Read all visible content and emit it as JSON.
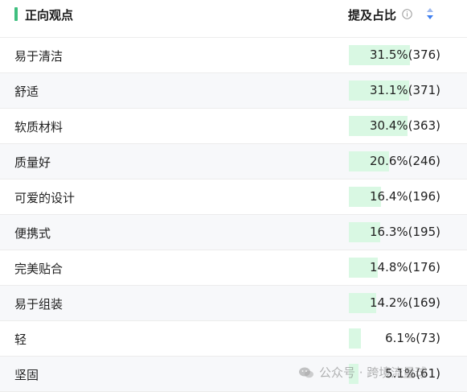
{
  "header": {
    "title": "正向观点",
    "column_title": "提及占比",
    "accent_color": "#3fbf7f",
    "info_icon": "info-icon",
    "sort_icon": "sort-icon"
  },
  "rows": [
    {
      "label": "易于清洁",
      "value": "31.5%(376)",
      "share": 31.5
    },
    {
      "label": "舒适",
      "value": "31.1%(371)",
      "share": 31.1
    },
    {
      "label": "软质材料",
      "value": "30.4%(363)",
      "share": 30.4
    },
    {
      "label": "质量好",
      "value": "20.6%(246)",
      "share": 20.6
    },
    {
      "label": "可爱的设计",
      "value": "16.4%(196)",
      "share": 16.4
    },
    {
      "label": "便携式",
      "value": "16.3%(195)",
      "share": 16.3
    },
    {
      "label": "完美贴合",
      "value": "14.8%(176)",
      "share": 14.8
    },
    {
      "label": "易于组装",
      "value": "14.2%(169)",
      "share": 14.2
    },
    {
      "label": "轻",
      "value": "6.1%(73)",
      "share": 6.1
    },
    {
      "label": "坚固",
      "value": "5.1%(61)",
      "share": 5.1
    }
  ],
  "bar_color": "#d9f8e3",
  "watermark": {
    "text": "公众号 · 跨境流量球",
    "icon": "wechat-icon"
  }
}
